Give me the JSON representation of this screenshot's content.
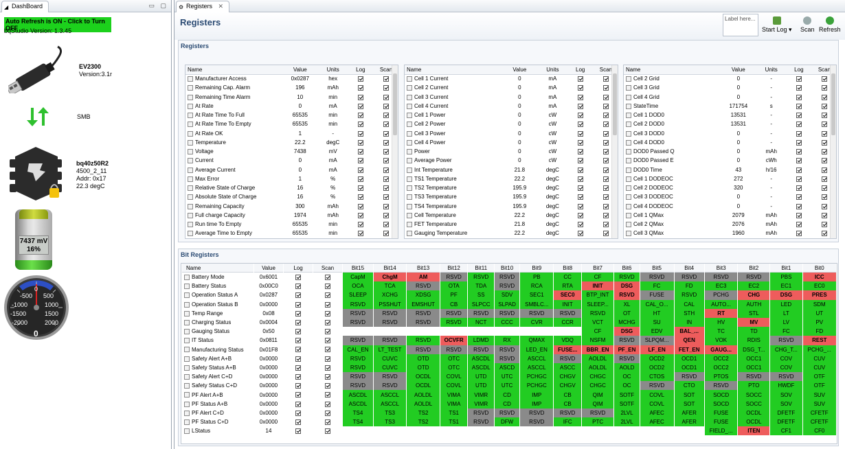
{
  "dashboard": {
    "tab_title": "DashBoard",
    "auto_refresh": "Auto Refresh is ON - Click to Turn OFF",
    "version": "bqStudio Version:  1.3.45",
    "adapter_name": "EV2300",
    "adapter_version": "Version:3.1r",
    "bus": "SMB",
    "device_name": "bq40z50R2",
    "device_line1": "4500_2_11",
    "device_line2": "Addr: 0x17",
    "device_line3": "22.3 degC",
    "battery_voltage": "7437 mV",
    "battery_soc": "16%",
    "battery_level": 0.16,
    "gauge_labels": [
      "-500",
      "-1000",
      "-1500",
      "-2000",
      "0",
      "500",
      "1000",
      "1500",
      "2000"
    ],
    "gauge_value": "0"
  },
  "registers": {
    "tab_title": "Registers",
    "page_title": "Registers",
    "section_title": "Registers",
    "label_placeholder": "Label here...",
    "start_log": "Start Log",
    "scan": "Scan",
    "refresh": "Refresh",
    "columns": [
      "Name",
      "Value",
      "Units",
      "Log",
      "Scan"
    ],
    "table1": [
      [
        "Manufacturer Access",
        "0x0287",
        "hex"
      ],
      [
        "Remaining Cap. Alarm",
        "196",
        "mAh"
      ],
      [
        "Remaining Time Alarm",
        "10",
        "min"
      ],
      [
        "At Rate",
        "0",
        "mA"
      ],
      [
        "At Rate Time To Full",
        "65535",
        "min"
      ],
      [
        "At Rate Time To Empty",
        "65535",
        "min"
      ],
      [
        "At Rate OK",
        "1",
        "-"
      ],
      [
        "Temperature",
        "22.2",
        "degC"
      ],
      [
        "Voltage",
        "7438",
        "mV"
      ],
      [
        "Current",
        "0",
        "mA"
      ],
      [
        "Average Current",
        "0",
        "mA"
      ],
      [
        "Max Error",
        "1",
        "%"
      ],
      [
        "Relative State of Charge",
        "16",
        "%"
      ],
      [
        "Absolute State of Charge",
        "16",
        "%"
      ],
      [
        "Remaining Capacity",
        "300",
        "mAh"
      ],
      [
        "Full charge Capacity",
        "1974",
        "mAh"
      ],
      [
        "Run time To Empty",
        "65535",
        "min"
      ],
      [
        "Average Time to Empty",
        "65535",
        "min"
      ]
    ],
    "table2": [
      [
        "Cell 1 Current",
        "0",
        "mA"
      ],
      [
        "Cell 2 Current",
        "0",
        "mA"
      ],
      [
        "Cell 3 Current",
        "0",
        "mA"
      ],
      [
        "Cell 4 Current",
        "0",
        "mA"
      ],
      [
        "Cell 1 Power",
        "0",
        "cW"
      ],
      [
        "Cell 2 Power",
        "0",
        "cW"
      ],
      [
        "Cell 3 Power",
        "0",
        "cW"
      ],
      [
        "Cell 4 Power",
        "0",
        "cW"
      ],
      [
        "Power",
        "0",
        "cW"
      ],
      [
        "Average Power",
        "0",
        "cW"
      ],
      [
        "Int Temperature",
        "21.8",
        "degC"
      ],
      [
        "TS1 Temperature",
        "22.2",
        "degC"
      ],
      [
        "TS2 Temperature",
        "195.9",
        "degC"
      ],
      [
        "TS3 Temperature",
        "195.9",
        "degC"
      ],
      [
        "TS4 Temperature",
        "195.9",
        "degC"
      ],
      [
        "Cell Temperature",
        "22.2",
        "degC"
      ],
      [
        "FET Temperature",
        "21.8",
        "degC"
      ],
      [
        "Gauging Temperature",
        "22.2",
        "degC"
      ]
    ],
    "table3": [
      [
        "Cell 2 Grid",
        "0",
        "-"
      ],
      [
        "Cell 3 Grid",
        "0",
        "-"
      ],
      [
        "Cell 4 Grid",
        "0",
        "-"
      ],
      [
        "StateTime",
        "171754",
        "s"
      ],
      [
        "Cell 1 DOD0",
        "13531",
        "-"
      ],
      [
        "Cell 2 DOD0",
        "13531",
        "-"
      ],
      [
        "Cell 3 DOD0",
        "0",
        "-"
      ],
      [
        "Cell 4 DOD0",
        "0",
        "-"
      ],
      [
        "DOD0 Passed Q",
        "0",
        "mAh"
      ],
      [
        "DOD0 Passed E",
        "0",
        "cWh"
      ],
      [
        "DOD0 Time",
        "43",
        "h/16"
      ],
      [
        "Cell 1 DODEOC",
        "272",
        "-"
      ],
      [
        "Cell 2 DODEOC",
        "320",
        "-"
      ],
      [
        "Cell 3 DODEOC",
        "0",
        "-"
      ],
      [
        "Cell 4 DODEOC",
        "0",
        "-"
      ],
      [
        "Cell 1 QMax",
        "2079",
        "mAh"
      ],
      [
        "Cell 2 QMax",
        "2076",
        "mAh"
      ],
      [
        "Cell 3 QMax",
        "1960",
        "mAh"
      ]
    ]
  },
  "bit_registers": {
    "section_title": "Bit Registers",
    "columns": [
      "Name",
      "Value",
      "Log",
      "Scan",
      "Bit15",
      "Bit14",
      "Bit13",
      "Bit12",
      "Bit11",
      "Bit10",
      "Bit9",
      "Bit8",
      "Bit7",
      "Bit6",
      "Bit5",
      "Bit4",
      "Bit3",
      "Bit2",
      "Bit1",
      "Bit0"
    ],
    "rows": [
      {
        "name": "Battery Mode",
        "value": "0x6001",
        "bits": [
          "CapM",
          "ChgM",
          "AM",
          "RSVD",
          "RSVD",
          "RSVD",
          "PB",
          "CC",
          "CF",
          "RSVD",
          "RSVD",
          "RSVD",
          "RSVD",
          "RSVD",
          "PBS",
          "ICC"
        ],
        "states": "grrygyggggyyyygr"
      },
      {
        "name": "Battery Status",
        "value": "0x00C0",
        "bits": [
          "OCA",
          "TCA",
          "RSVD",
          "OTA",
          "TDA",
          "RSVD",
          "RCA",
          "RTA",
          "INIT",
          "DSG",
          "FC",
          "FD",
          "EC3",
          "EC2",
          "EC1",
          "EC0"
        ],
        "states": "ggyggyggrrgggggg"
      },
      {
        "name": "Operation Status A",
        "value": "0x0287",
        "bits": [
          "SLEEP",
          "XCHG",
          "XDSG",
          "PF",
          "SS",
          "SDV",
          "SEC1",
          "SEC0",
          "BTP_INT",
          "RSVD",
          "FUSE",
          "RSVD",
          "PCHG",
          "CHG",
          "DSG",
          "PRES"
        ],
        "states": "gggggggrgrygyrrr"
      },
      {
        "name": "Operation Status B",
        "value": "0x0000",
        "bits": [
          "RSVD",
          "PSSHUT",
          "EMSHUT",
          "CB",
          "SLPCC",
          "SLPAD",
          "SMBLC...",
          "INIT",
          "SLEEP...",
          "XL",
          "CAL_O...",
          "CAL",
          "AUTO...",
          "AUTH",
          "LED",
          "SDM"
        ],
        "states": "ygggggggggggggggg"
      },
      {
        "name": "Temp Range",
        "value": "0x08",
        "bits": [
          "RSVD",
          "RSVD",
          "RSVD",
          "RSVD",
          "RSVD",
          "RSVD",
          "RSVD",
          "RSVD",
          "RSVD",
          "OT",
          "HT",
          "STH",
          "RT",
          "STL",
          "LT",
          "UT"
        ],
        "states": "yyyyyyyyyggggrggg"
      },
      {
        "name": "Charging Status",
        "value": "0x0004",
        "bits": [
          "RSVD",
          "RSVD",
          "RSVD",
          "RSVD",
          "NCT",
          "CCC",
          "CVR",
          "CCR",
          "VCT",
          "MCHG",
          "SU",
          "IN",
          "HV",
          "MV",
          "LV",
          "PV"
        ],
        "states": "yyyyggggggggggrgg"
      },
      {
        "name": "Gauging Status",
        "value": "0x50",
        "bits": [
          "",
          "",
          "",
          "",
          "",
          "",
          "",
          "",
          "CF",
          "DSG",
          "EDV",
          "BAL_...",
          "TC",
          "TD",
          "FC",
          "FD"
        ],
        "states": "wwwwwwwwgrgrgggg"
      },
      {
        "name": "IT Status",
        "value": "0x0811",
        "bits": [
          "RSVD",
          "RSVD",
          "RSVD",
          "OCVFR",
          "LDMD",
          "RX",
          "QMAX",
          "VDQ",
          "NSFM",
          "RSVD",
          "SLPQM...",
          "QEN",
          "VOK",
          "RDIS",
          "RSVD",
          "REST"
        ],
        "states": "yyygrgggggyyrggyr"
      },
      {
        "name": "Manufacturing Status",
        "value": "0x01F8",
        "bits": [
          "CAL_EN",
          "LT_TEST",
          "RSVD",
          "RSVD",
          "RSVD",
          "RSVD",
          "LED_EN",
          "FUSE...",
          "BBR_EN",
          "PF_EN",
          "LF_EN",
          "FET_EN",
          "GAUG...",
          "DSG_T...",
          "CHG_T...",
          "PCHG_..."
        ],
        "states": "ggyyyygrrrrrrggg"
      },
      {
        "name": "Safety Alert A+B",
        "value": "0x0000",
        "bits": [
          "RSVD",
          "CUVC",
          "OTD",
          "OTC",
          "ASCDL",
          "RSVD",
          "ASCCL",
          "RSVD",
          "AOLDL",
          "RSVD",
          "OCD2",
          "OCD1",
          "OCC2",
          "OCC1",
          "COV",
          "CUV"
        ],
        "states": "ygggggygygygggggg"
      },
      {
        "name": "Safety Status A+B",
        "value": "0x0000",
        "bits": [
          "RSVD",
          "CUVC",
          "OTD",
          "OTC",
          "ASCDL",
          "ASCD",
          "ASCCL",
          "ASCC",
          "AOLDL",
          "AOLD",
          "OCD2",
          "OCD1",
          "OCC2",
          "OCC1",
          "COV",
          "CUV"
        ],
        "states": "ygggggggggggggggg"
      },
      {
        "name": "Safety Alert C+D",
        "value": "0x0000",
        "bits": [
          "RSVD",
          "RSVD",
          "OCDL",
          "COVL",
          "UTD",
          "UTC",
          "PCHGC",
          "CHGV",
          "CHGC",
          "OC",
          "CTOS",
          "RSVD",
          "PTOS",
          "RSVD",
          "RSVD",
          "OTF"
        ],
        "states": "yygggggggggygyyg"
      },
      {
        "name": "Safety Status C+D",
        "value": "0x0000",
        "bits": [
          "RSVD",
          "RSVD",
          "OCDL",
          "COVL",
          "UTD",
          "UTC",
          "PCHGC",
          "CHGV",
          "CHGC",
          "OC",
          "RSVD",
          "CTO",
          "RSVD",
          "PTO",
          "HWDF",
          "OTF"
        ],
        "states": "yyggggggggygyggg"
      },
      {
        "name": "PF Alert A+B",
        "value": "0x0000",
        "bits": [
          "ASCDL",
          "ASCCL",
          "AOLDL",
          "VIMA",
          "VIMR",
          "CD",
          "IMP",
          "CB",
          "QIM",
          "SOTF",
          "COVL",
          "SOT",
          "SOCD",
          "SOCC",
          "SOV",
          "SUV"
        ],
        "states": "gggggggggggggggg"
      },
      {
        "name": "PF Status A+B",
        "value": "0x0000",
        "bits": [
          "ASCDL",
          "ASCCL",
          "AOLDL",
          "VIMA",
          "VIMR",
          "CD",
          "IMP",
          "CB",
          "QIM",
          "SOTF",
          "COVL",
          "SOT",
          "SOCD",
          "SOCC",
          "SOV",
          "SUV"
        ],
        "states": "gggggggggggggggg"
      },
      {
        "name": "PF Alert C+D",
        "value": "0x0000",
        "bits": [
          "TS4",
          "TS3",
          "TS2",
          "TS1",
          "RSVD",
          "RSVD",
          "RSVD",
          "RSVD",
          "RSVD",
          "2LVL",
          "AFEC",
          "AFER",
          "FUSE",
          "OCDL",
          "DFETF",
          "CFETF"
        ],
        "states": "ggggyyyyyggggggg"
      },
      {
        "name": "PF Status C+D",
        "value": "0x0000",
        "bits": [
          "TS4",
          "TS3",
          "TS2",
          "TS1",
          "RSVD",
          "DFW",
          "RSVD",
          "IFC",
          "PTC",
          "2LVL",
          "AFEC",
          "AFER",
          "FUSE",
          "OCDL",
          "DFETF",
          "CFETF"
        ],
        "states": "ggggygyggggggggg"
      },
      {
        "name": "LStatus",
        "value": "14",
        "bits": [
          "",
          "",
          "",
          "",
          "",
          "",
          "",
          "",
          "",
          "",
          "",
          "",
          "FIELD_...",
          "ITEN",
          "CF1",
          "CF0"
        ],
        "states": "wwwwwwwwwwwwgrgg"
      }
    ]
  },
  "colors": {
    "on": "#ee5c5c",
    "off": "#22cc22",
    "reserved": "#8a8a8a",
    "title": "#2a4a72"
  }
}
